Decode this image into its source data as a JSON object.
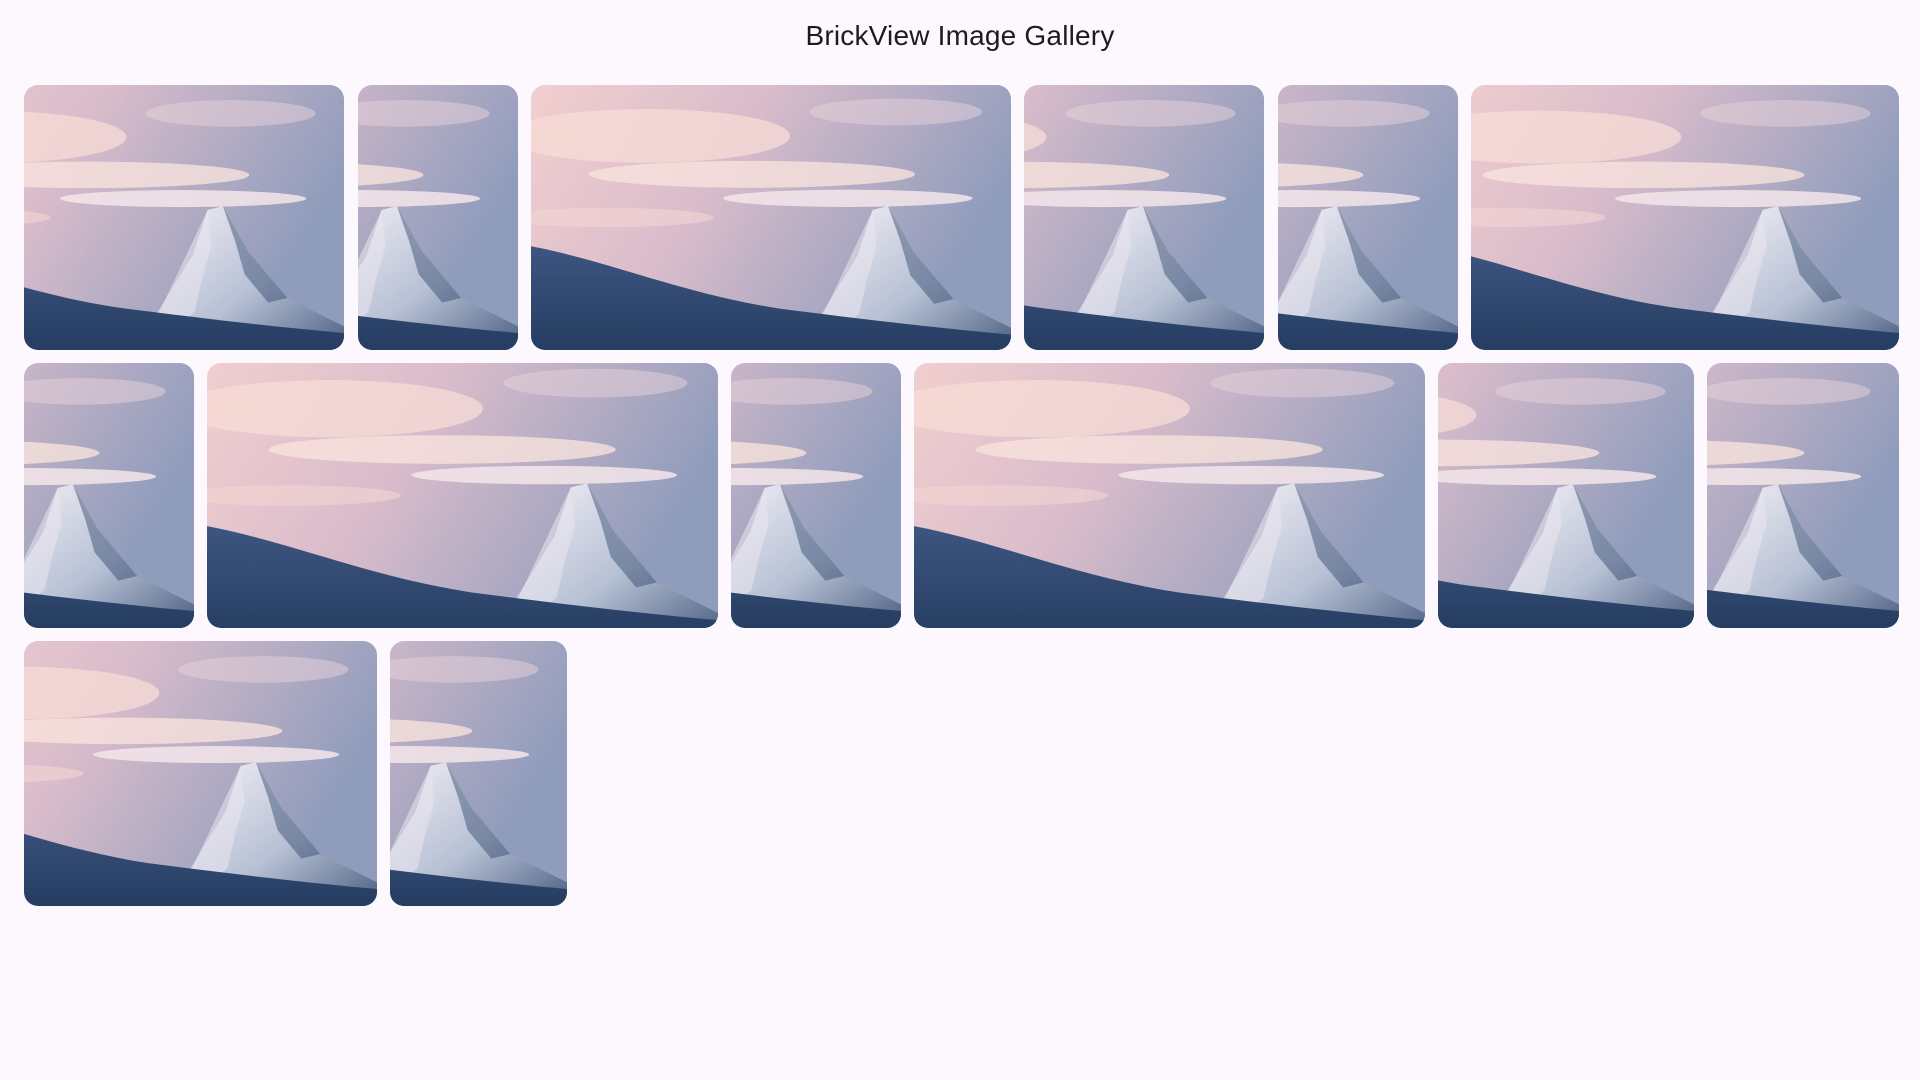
{
  "app": {
    "title": "BrickView Image Gallery"
  },
  "gallery": {
    "image_subject": "snowy mountain peak at sunset",
    "tile_count": 14
  },
  "colors": {
    "background": "#fdf7fe",
    "title_text": "#1d1b20",
    "sky_top": "#8f9cbc",
    "sky_glow": "#f2cfcf",
    "snow_dark": "#263d62",
    "snow_mid": "#3d5680"
  }
}
